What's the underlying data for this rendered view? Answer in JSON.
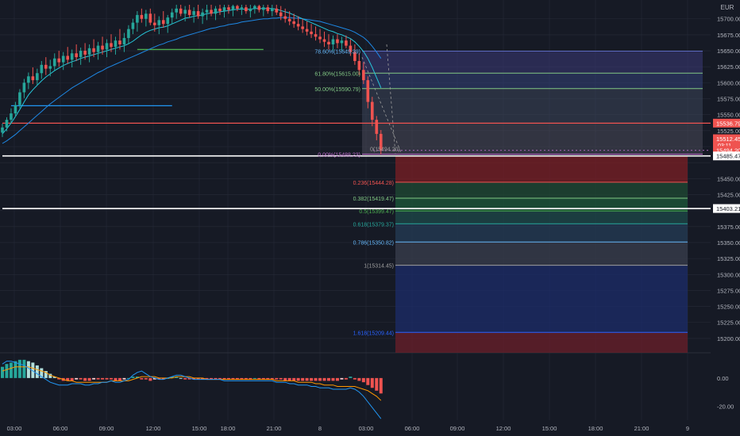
{
  "currency": "EUR",
  "colors": {
    "bg": "#161a25",
    "grid": "#262b38",
    "up": "#26a69a",
    "down": "#ef5350",
    "ema_fast": "#26c6da",
    "ema_slow": "#1e88e5",
    "axis_text": "#b2b5be",
    "price_tag": "#ef5350",
    "white_line": "#ffffff"
  },
  "chart_data": [
    {
      "type": "candlestick",
      "title": "",
      "x_axis_ticks": [
        "03:00",
        "06:00",
        "09:00",
        "12:00",
        "15:00",
        "18:00",
        "21:00",
        "8",
        "03:00",
        "06:00",
        "09:00",
        "12:00",
        "15:00",
        "18:00",
        "21:00",
        "9"
      ],
      "y_axis_ticks": [
        15700,
        15675,
        15650,
        15625,
        15600,
        15575,
        15550,
        15525,
        15500,
        15475,
        15450,
        15425,
        15400,
        15375,
        15350,
        15325,
        15300,
        15275,
        15250,
        15225,
        15200
      ],
      "y_axis_tick_labels": [
        "15700.00",
        "15675.00",
        "15650.00",
        "15625.00",
        "15600.00",
        "15575.00",
        "15550.00",
        "15525.00",
        "",
        "",
        "15450.00",
        "15425.00",
        "15400.00",
        "15375.00",
        "15350.00",
        "15325.00",
        "15300.00",
        "15275.00",
        "15250.00",
        "15225.00",
        "15200.00"
      ],
      "ylim": [
        15185,
        15722
      ],
      "price_tags": [
        {
          "label": "15536.79",
          "value": 15536.79,
          "style": "red"
        },
        {
          "label": "15512.45",
          "sublabel": "03:11",
          "value": 15512.45,
          "style": "red"
        },
        {
          "label": "15494.20",
          "value": 15494.2,
          "style": "red"
        },
        {
          "label": "15485.47",
          "value": 15485.47,
          "style": "white"
        },
        {
          "label": "15403.21",
          "value": 15403.21,
          "style": "white"
        }
      ],
      "horizontal_lines": [
        {
          "value": 15536.79,
          "color": "#ef5350",
          "from_index": 0
        },
        {
          "value": 15485.47,
          "color": "#ffffff",
          "from_index": 0
        },
        {
          "value": 15403.21,
          "color": "#ffffff",
          "from_index": 0
        },
        {
          "value": 15564,
          "color": "#2196f3",
          "from_index": 2,
          "to_index": 39
        },
        {
          "value": 15652,
          "color": "#4caf50",
          "from_index": 31,
          "to_index": 60
        }
      ],
      "fib_retracement": {
        "levels": [
          {
            "label": "78.60%(15649.39)",
            "value": 15649.39,
            "color": "#64b5f6"
          },
          {
            "label": "61.80%(15615.00)",
            "value": 15615.0,
            "color": "#81c784"
          },
          {
            "label": "50.00%(15590.79)",
            "value": 15590.79,
            "color": "#81c784"
          },
          {
            "label": "0.00%(15488.23)",
            "value": 15488.23,
            "color": "#ba68c8"
          }
        ],
        "second_zero_label": "0(15494.20)"
      },
      "fib_extension": {
        "levels": [
          {
            "label": "0.236(15444.28)",
            "value": 15444.28,
            "color": "#ef5350"
          },
          {
            "label": "0.382(15419.47)",
            "value": 15419.47,
            "color": "#81c784"
          },
          {
            "label": "0.5(15399.47)",
            "value": 15399.47,
            "color": "#4caf50"
          },
          {
            "label": "0.618(15379.37)",
            "value": 15379.37,
            "color": "#26a69a"
          },
          {
            "label": "0.786(15350.82)",
            "value": 15350.82,
            "color": "#64b5f6"
          },
          {
            "label": "1(15314.45)",
            "value": 15314.45,
            "color": "#9e9e9e"
          },
          {
            "label": "1.618(15209.44)",
            "value": 15209.44,
            "color": "#2962ff"
          }
        ]
      },
      "candles": [
        [
          15522,
          15536,
          15515,
          15530
        ],
        [
          15530,
          15546,
          15524,
          15542
        ],
        [
          15542,
          15560,
          15536,
          15552
        ],
        [
          15552,
          15570,
          15546,
          15565
        ],
        [
          15565,
          15590,
          15560,
          15585
        ],
        [
          15585,
          15606,
          15576,
          15600
        ],
        [
          15600,
          15616,
          15590,
          15610
        ],
        [
          15610,
          15624,
          15598,
          15604
        ],
        [
          15604,
          15622,
          15596,
          15615
        ],
        [
          15615,
          15634,
          15606,
          15628
        ],
        [
          15628,
          15640,
          15612,
          15622
        ],
        [
          15622,
          15636,
          15610,
          15626
        ],
        [
          15626,
          15646,
          15618,
          15638
        ],
        [
          15638,
          15650,
          15625,
          15632
        ],
        [
          15632,
          15648,
          15620,
          15642
        ],
        [
          15642,
          15656,
          15630,
          15636
        ],
        [
          15636,
          15652,
          15624,
          15646
        ],
        [
          15646,
          15660,
          15634,
          15640
        ],
        [
          15640,
          15655,
          15628,
          15650
        ],
        [
          15650,
          15662,
          15636,
          15644
        ],
        [
          15644,
          15660,
          15632,
          15654
        ],
        [
          15654,
          15668,
          15640,
          15648
        ],
        [
          15648,
          15664,
          15636,
          15658
        ],
        [
          15658,
          15672,
          15644,
          15652
        ],
        [
          15652,
          15668,
          15640,
          15662
        ],
        [
          15662,
          15676,
          15648,
          15656
        ],
        [
          15656,
          15672,
          15644,
          15666
        ],
        [
          15666,
          15684,
          15652,
          15660
        ],
        [
          15660,
          15678,
          15648,
          15670
        ],
        [
          15670,
          15690,
          15660,
          15684
        ],
        [
          15684,
          15700,
          15676,
          15694
        ],
        [
          15694,
          15712,
          15680,
          15706
        ],
        [
          15706,
          15716,
          15694,
          15700
        ],
        [
          15700,
          15714,
          15688,
          15708
        ],
        [
          15708,
          15716,
          15690,
          15694
        ],
        [
          15694,
          15708,
          15680,
          15690
        ],
        [
          15690,
          15704,
          15676,
          15698
        ],
        [
          15698,
          15712,
          15686,
          15692
        ],
        [
          15692,
          15706,
          15678,
          15702
        ],
        [
          15702,
          15716,
          15692,
          15710
        ],
        [
          15710,
          15722,
          15700,
          15716
        ],
        [
          15716,
          15722,
          15704,
          15708
        ],
        [
          15708,
          15720,
          15696,
          15714
        ],
        [
          15714,
          15722,
          15702,
          15706
        ],
        [
          15706,
          15718,
          15694,
          15712
        ],
        [
          15712,
          15722,
          15700,
          15704
        ],
        [
          15704,
          15716,
          15692,
          15710
        ],
        [
          15710,
          15722,
          15698,
          15714
        ],
        [
          15714,
          15722,
          15704,
          15708
        ],
        [
          15708,
          15720,
          15698,
          15716
        ],
        [
          15716,
          15722,
          15706,
          15712
        ],
        [
          15712,
          15722,
          15702,
          15718
        ],
        [
          15718,
          15722,
          15708,
          15714
        ],
        [
          15714,
          15722,
          15704,
          15720
        ],
        [
          15720,
          15722,
          15712,
          15716
        ],
        [
          15716,
          15722,
          15706,
          15718
        ],
        [
          15718,
          15722,
          15708,
          15712
        ],
        [
          15712,
          15722,
          15702,
          15716
        ],
        [
          15716,
          15722,
          15708,
          15720
        ],
        [
          15720,
          15722,
          15710,
          15714
        ],
        [
          15714,
          15722,
          15704,
          15718
        ],
        [
          15718,
          15722,
          15708,
          15712
        ],
        [
          15712,
          15722,
          15704,
          15716
        ],
        [
          15716,
          15722,
          15706,
          15710
        ],
        [
          15710,
          15720,
          15698,
          15704
        ],
        [
          15704,
          15716,
          15694,
          15700
        ],
        [
          15700,
          15712,
          15690,
          15696
        ],
        [
          15696,
          15708,
          15686,
          15692
        ],
        [
          15692,
          15704,
          15682,
          15688
        ],
        [
          15688,
          15700,
          15678,
          15684
        ],
        [
          15684,
          15696,
          15674,
          15680
        ],
        [
          15680,
          15692,
          15670,
          15676
        ],
        [
          15676,
          15688,
          15666,
          15672
        ],
        [
          15672,
          15684,
          15662,
          15668
        ],
        [
          15668,
          15680,
          15656,
          15664
        ],
        [
          15664,
          15676,
          15652,
          15660
        ],
        [
          15660,
          15674,
          15650,
          15668
        ],
        [
          15668,
          15676,
          15654,
          15662
        ],
        [
          15662,
          15672,
          15650,
          15666
        ],
        [
          15666,
          15674,
          15654,
          15658
        ],
        [
          15658,
          15668,
          15642,
          15648
        ],
        [
          15648,
          15660,
          15628,
          15634
        ],
        [
          15634,
          15646,
          15612,
          15620
        ],
        [
          15620,
          15632,
          15598,
          15604
        ],
        [
          15604,
          15610,
          15560,
          15570
        ],
        [
          15570,
          15578,
          15532,
          15542
        ],
        [
          15542,
          15548,
          15510,
          15520
        ],
        [
          15520,
          15526,
          15488,
          15494
        ]
      ],
      "ema_fast": [
        15520,
        15528,
        15537,
        15547,
        15558,
        15570,
        15581,
        15589,
        15596,
        15603,
        15609,
        15614,
        15619,
        15623,
        15627,
        15630,
        15633,
        15635,
        15638,
        15640,
        15642,
        15644,
        15646,
        15648,
        15650,
        15652,
        15654,
        15656,
        15658,
        15661,
        15665,
        15670,
        15675,
        15679,
        15682,
        15684,
        15686,
        15687,
        15689,
        15692,
        15695,
        15698,
        15701,
        15702,
        15704,
        15705,
        15706,
        15708,
        15709,
        15710,
        15711,
        15712,
        15713,
        15714,
        15715,
        15715,
        15715,
        15715,
        15716,
        15716,
        15716,
        15716,
        15716,
        15715,
        15713,
        15711,
        15709,
        15706,
        15703,
        15700,
        15697,
        15694,
        15691,
        15688,
        15685,
        15682,
        15680,
        15677,
        15675,
        15672,
        15669,
        15664,
        15657,
        15649,
        15638,
        15624,
        15608,
        15592
      ],
      "ema_slow": [
        15505,
        15509,
        15514,
        15519,
        15525,
        15531,
        15537,
        15543,
        15549,
        15555,
        15561,
        15567,
        15572,
        15577,
        15582,
        15587,
        15592,
        15596,
        15600,
        15604,
        15608,
        15612,
        15616,
        15619,
        15623,
        15626,
        15629,
        15632,
        15635,
        15638,
        15641,
        15644,
        15647,
        15650,
        15653,
        15656,
        15659,
        15661,
        15664,
        15666,
        15668,
        15671,
        15673,
        15675,
        15677,
        15679,
        15681,
        15683,
        15685,
        15686,
        15688,
        15689,
        15691,
        15692,
        15693,
        15695,
        15696,
        15697,
        15698,
        15699,
        15700,
        15700,
        15701,
        15701,
        15702,
        15702,
        15702,
        15701,
        15701,
        15700,
        15699,
        15698,
        15697,
        15696,
        15694,
        15692,
        15690,
        15688,
        15686,
        15684,
        15682,
        15679,
        15675,
        15671,
        15665,
        15657,
        15648,
        15638
      ]
    },
    {
      "type": "macd",
      "title": "",
      "y_axis_ticks": [
        0,
        -20
      ],
      "y_axis_tick_labels": [
        "0.00",
        "-20.00"
      ],
      "ylim": [
        -30,
        18
      ],
      "histogram": [
        8,
        10,
        11,
        12,
        13,
        13,
        12,
        11,
        9,
        7,
        5,
        3,
        1,
        -1,
        -2,
        -2,
        -2,
        -1,
        -1,
        -2,
        -2,
        -1,
        -1,
        -1,
        -1,
        -1,
        -2,
        -2,
        -1,
        0,
        1,
        1,
        -1,
        -1,
        -2,
        -1,
        -1,
        -1,
        0,
        1,
        1,
        0,
        -1,
        -1,
        -1,
        -1,
        -1,
        -1,
        -1,
        -1,
        -1,
        -1,
        -1,
        -1,
        -1,
        -1,
        -1,
        -1,
        0,
        -1,
        -1,
        -1,
        -1,
        -1,
        -1,
        -2,
        -2,
        -2,
        -2,
        -2,
        -2,
        -2,
        -2,
        -2,
        -2,
        -2,
        -2,
        -2,
        -1,
        -1,
        1,
        -1,
        -2,
        -3,
        -5,
        -7,
        -9,
        -11
      ],
      "macd_line": [
        10,
        12,
        12,
        11,
        10,
        9,
        7,
        5,
        3,
        1,
        -1,
        -3,
        -4,
        -5,
        -5,
        -5,
        -4,
        -4,
        -4,
        -5,
        -5,
        -4,
        -4,
        -3,
        -3,
        -2,
        -3,
        -3,
        -2,
        -1,
        2,
        4,
        5,
        3,
        1,
        0,
        -1,
        -1,
        0,
        1,
        2,
        2,
        1,
        0,
        -1,
        -1,
        -1,
        -1,
        -1,
        -1,
        -1,
        -2,
        -2,
        -2,
        -2,
        -2,
        -2,
        -2,
        -2,
        -2,
        -2,
        -2,
        -2,
        -3,
        -3,
        -3,
        -4,
        -4,
        -5,
        -5,
        -5,
        -6,
        -6,
        -7,
        -7,
        -7,
        -8,
        -8,
        -8,
        -8,
        -7,
        -8,
        -10,
        -13,
        -17,
        -21,
        -25,
        -29
      ],
      "signal_line": [
        5,
        6,
        7,
        8,
        8,
        8,
        8,
        7,
        6,
        5,
        4,
        2,
        1,
        0,
        -1,
        -2,
        -2,
        -3,
        -3,
        -3,
        -3,
        -3,
        -3,
        -3,
        -3,
        -2,
        -2,
        -2,
        -2,
        -2,
        -1,
        0,
        1,
        1,
        1,
        1,
        0,
        0,
        0,
        0,
        1,
        1,
        1,
        1,
        0,
        0,
        0,
        -1,
        -1,
        -1,
        -1,
        -1,
        -1,
        -1,
        -1,
        -1,
        -1,
        -1,
        -1,
        -1,
        -1,
        -1,
        -1,
        -2,
        -2,
        -2,
        -2,
        -2,
        -3,
        -3,
        -3,
        -3,
        -4,
        -4,
        -5,
        -5,
        -5,
        -6,
        -6,
        -6,
        -6,
        -6,
        -7,
        -8,
        -9,
        -11,
        -13,
        -16
      ]
    }
  ]
}
